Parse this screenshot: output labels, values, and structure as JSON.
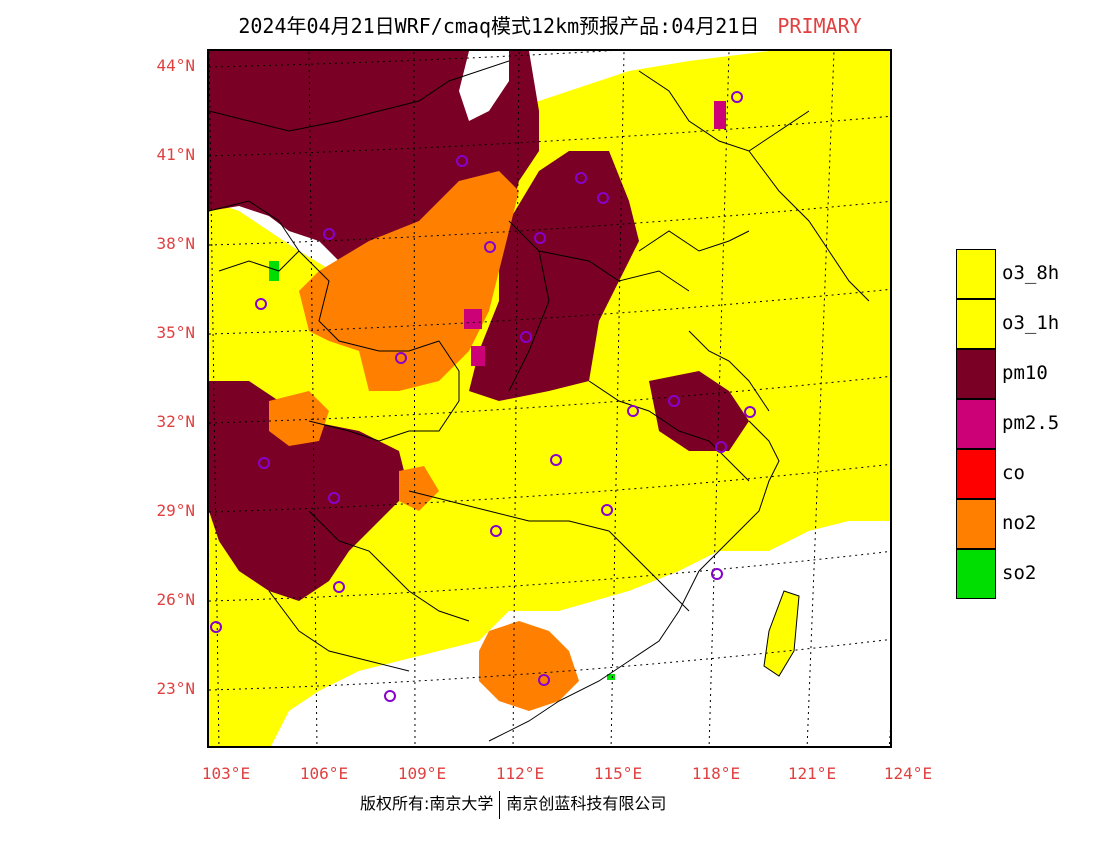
{
  "title": {
    "main": "2024年04月21日WRF/cmaq模式12km预报产品:04月21日",
    "tag": "PRIMARY"
  },
  "lat_labels": [
    "44°N",
    "41°N",
    "38°N",
    "35°N",
    "32°N",
    "29°N",
    "26°N",
    "23°N"
  ],
  "lon_labels": [
    "103°E",
    "106°E",
    "109°E",
    "112°E",
    "115°E",
    "118°E",
    "121°E",
    "124°E"
  ],
  "legend": [
    {
      "label": "o3_8h",
      "color": "#ffff00"
    },
    {
      "label": "o3_1h",
      "color": "#ffff00"
    },
    {
      "label": "pm10",
      "color": "#7a0025"
    },
    {
      "label": "pm2.5",
      "color": "#cc0077"
    },
    {
      "label": "co",
      "color": "#ff0000"
    },
    {
      "label": "no2",
      "color": "#ff8000"
    },
    {
      "label": "so2",
      "color": "#00dd00"
    }
  ],
  "footer": {
    "left": "版权所有:南京大学",
    "right": "南京创蓝科技有限公司"
  }
}
